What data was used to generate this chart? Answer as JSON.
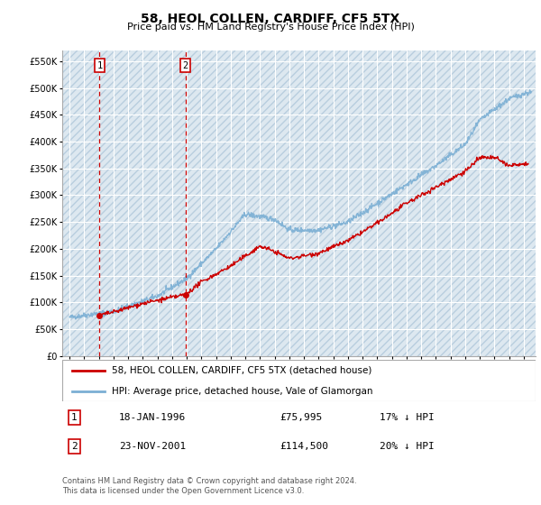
{
  "title": "58, HEOL COLLEN, CARDIFF, CF5 5TX",
  "subtitle": "Price paid vs. HM Land Registry's House Price Index (HPI)",
  "ylim": [
    0,
    570000
  ],
  "xlim_start": 1993.5,
  "xlim_end": 2025.8,
  "transaction1": {
    "date_num": 1996.05,
    "price": 75995,
    "label": "1"
  },
  "transaction2": {
    "date_num": 2001.9,
    "price": 114500,
    "label": "2"
  },
  "legend_entry1": "58, HEOL COLLEN, CARDIFF, CF5 5TX (detached house)",
  "legend_entry2": "HPI: Average price, detached house, Vale of Glamorgan",
  "table_row1": [
    "1",
    "18-JAN-1996",
    "£75,995",
    "17% ↓ HPI"
  ],
  "table_row2": [
    "2",
    "23-NOV-2001",
    "£114,500",
    "20% ↓ HPI"
  ],
  "footnote": "Contains HM Land Registry data © Crown copyright and database right 2024.\nThis data is licensed under the Open Government Licence v3.0.",
  "hpi_color": "#7bafd4",
  "price_color": "#cc0000",
  "vline_color": "#cc0000",
  "grid_color": "#cccccc",
  "hatch_bg": "#dde8f0",
  "hatch_line": "#b8cede"
}
